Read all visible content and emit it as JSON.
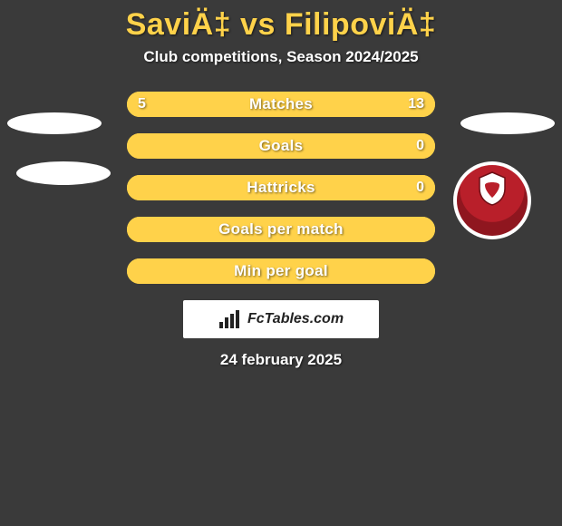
{
  "title": "SaviÄ‡ vs FilipoviÄ‡",
  "subtitle": "Club competitions, Season 2024/2025",
  "accent_color": "#ffd24a",
  "background_color": "#3a3a3a",
  "text_color": "#ffffff",
  "rows": [
    {
      "label": "Matches",
      "left": "5",
      "right": "13",
      "left_fill_pct": 27.8,
      "right_fill_pct": 72.2
    },
    {
      "label": "Goals",
      "left": "",
      "right": "0",
      "left_fill_pct": 0,
      "right_fill_pct": 0,
      "full_fill": true
    },
    {
      "label": "Hattricks",
      "left": "",
      "right": "0",
      "left_fill_pct": 0,
      "right_fill_pct": 0,
      "full_fill": true
    },
    {
      "label": "Goals per match",
      "left": "",
      "right": "",
      "left_fill_pct": 0,
      "right_fill_pct": 0,
      "full_fill": true
    },
    {
      "label": "Min per goal",
      "left": "",
      "right": "",
      "left_fill_pct": 0,
      "right_fill_pct": 0,
      "full_fill": true
    }
  ],
  "brand": "FcTables.com",
  "date": "24 february 2025",
  "crest_primary": "#b91f2a",
  "crest_secondary": "#8f161f"
}
